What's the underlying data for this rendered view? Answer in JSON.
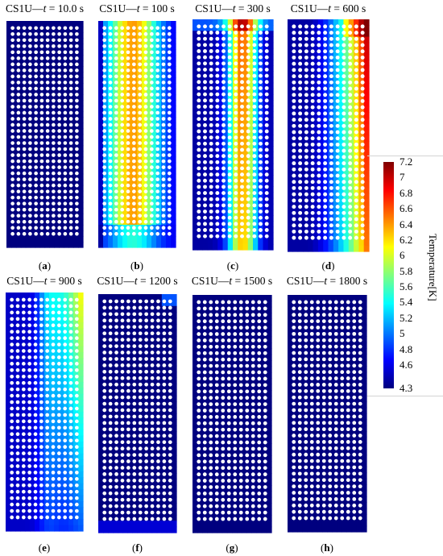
{
  "panels": [
    {
      "id": "a",
      "prefix": "CS1U—",
      "var": "t",
      "rest": " = 10.0 s",
      "label": "a",
      "fill": "[1,1,1,1,1]",
      "map": "uniform",
      "base": 4.3
    },
    {
      "id": "b",
      "prefix": "CS1U—",
      "var": "t",
      "rest": " = 100 s",
      "label": "b",
      "map": "hot-core",
      "base": 4.6,
      "peak": 6.4
    },
    {
      "id": "c",
      "prefix": "CS1U—",
      "var": "t",
      "rest": " = 300 s",
      "label": "c",
      "map": "right-front",
      "base": 4.4,
      "peak": 6.6
    },
    {
      "id": "d",
      "prefix": "CS1U—",
      "var": "t",
      "rest": " = 600 s",
      "label": "d",
      "map": "right-hot",
      "base": 4.4,
      "peak": 7.2
    },
    {
      "id": "e",
      "prefix": "CS1U—",
      "var": "t",
      "rest": " = 900 s",
      "label": "e",
      "map": "cooling",
      "base": 4.5,
      "peak": 6.2
    },
    {
      "id": "f",
      "prefix": "CS1U—",
      "var": "t",
      "rest": " = 1200 s",
      "label": "f",
      "map": "nearly-cold",
      "base": 4.3,
      "peak": 4.9
    },
    {
      "id": "g",
      "prefix": "CS1U—",
      "var": "t",
      "rest": " = 1500 s",
      "label": "g",
      "map": "uniform",
      "base": 4.3
    },
    {
      "id": "h",
      "prefix": "CS1U—",
      "var": "t",
      "rest": " = 1800 s",
      "label": "h",
      "map": "uniform",
      "base": 4.3
    }
  ],
  "colorbar": {
    "title": "Temperature[K]",
    "min": 4.3,
    "max": 7.2,
    "ticks": [
      "7.2",
      "7",
      "6.8",
      "6.6",
      "6.4",
      "6.2",
      "6",
      "5.8",
      "5.6",
      "5.4",
      "5.2",
      "5",
      "4.8",
      "4.6",
      "4.3"
    ],
    "tick_values": [
      7.2,
      7.0,
      6.8,
      6.6,
      6.4,
      6.2,
      6.0,
      5.8,
      5.6,
      5.4,
      5.2,
      5.0,
      4.8,
      4.6,
      4.3
    ]
  },
  "colormap": [
    "#00007f",
    "#0000ff",
    "#007fff",
    "#00ffff",
    "#7fff7f",
    "#ffff00",
    "#ff7f00",
    "#ff0000",
    "#7f0000"
  ]
}
